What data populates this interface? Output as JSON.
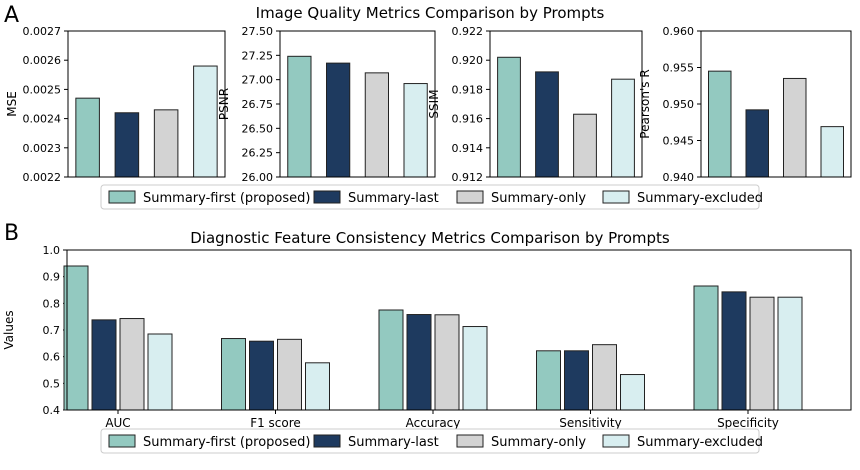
{
  "panel_a_label": "A",
  "panel_b_label": "B",
  "panel_a_title": "Image Quality Metrics Comparison by Prompts",
  "panel_b_title": "Diagnostic Feature Consistency Metrics Comparison by Prompts",
  "colors": {
    "summary_first": "#93c9c0",
    "summary_last": "#1e3a5f",
    "summary_only": "#d3d3d3",
    "summary_excluded": "#d8eef0",
    "edge": "#222222"
  },
  "legend": [
    "Summary-first (proposed)",
    "Summary-last",
    "Summary-only",
    "Summary-excluded"
  ],
  "chart_data": [
    {
      "type": "bar",
      "ylabel": "MSE",
      "ylim": [
        0.0022,
        0.0027
      ],
      "ticks": [
        "0.0022",
        "0.0023",
        "0.0024",
        "0.0025",
        "0.0026",
        "0.0027"
      ],
      "series": [
        {
          "name": "Summary-first (proposed)",
          "values": [
            0.00247
          ]
        },
        {
          "name": "Summary-last",
          "values": [
            0.00242
          ]
        },
        {
          "name": "Summary-only",
          "values": [
            0.00243
          ]
        },
        {
          "name": "Summary-excluded",
          "values": [
            0.00258
          ]
        }
      ]
    },
    {
      "type": "bar",
      "ylabel": "PSNR",
      "ylim": [
        26.0,
        27.5
      ],
      "ticks": [
        "26.00",
        "26.25",
        "26.50",
        "26.75",
        "27.00",
        "27.25",
        "27.50"
      ],
      "series": [
        {
          "name": "Summary-first (proposed)",
          "values": [
            27.24
          ]
        },
        {
          "name": "Summary-last",
          "values": [
            27.17
          ]
        },
        {
          "name": "Summary-only",
          "values": [
            27.07
          ]
        },
        {
          "name": "Summary-excluded",
          "values": [
            26.96
          ]
        }
      ]
    },
    {
      "type": "bar",
      "ylabel": "SSIM",
      "ylim": [
        0.912,
        0.922
      ],
      "ticks": [
        "0.912",
        "0.914",
        "0.916",
        "0.918",
        "0.920",
        "0.922"
      ],
      "series": [
        {
          "name": "Summary-first (proposed)",
          "values": [
            0.9202
          ]
        },
        {
          "name": "Summary-last",
          "values": [
            0.9192
          ]
        },
        {
          "name": "Summary-only",
          "values": [
            0.9163
          ]
        },
        {
          "name": "Summary-excluded",
          "values": [
            0.9187
          ]
        }
      ]
    },
    {
      "type": "bar",
      "ylabel": "Pearson's R",
      "ylim": [
        0.94,
        0.96
      ],
      "ticks": [
        "0.940",
        "0.945",
        "0.950",
        "0.955",
        "0.960"
      ],
      "series": [
        {
          "name": "Summary-first (proposed)",
          "values": [
            0.9545
          ]
        },
        {
          "name": "Summary-last",
          "values": [
            0.9492
          ]
        },
        {
          "name": "Summary-only",
          "values": [
            0.9535
          ]
        },
        {
          "name": "Summary-excluded",
          "values": [
            0.9469
          ]
        }
      ]
    },
    {
      "type": "bar",
      "ylabel": "Values",
      "categories": [
        "AUC",
        "F1 score",
        "Accuracy",
        "Sensitivity",
        "Specificity"
      ],
      "ylim": [
        0.4,
        1.0
      ],
      "ticks": [
        "0.4",
        "0.5",
        "0.6",
        "0.7",
        "0.8",
        "0.9",
        "1.0"
      ],
      "series": [
        {
          "name": "Summary-first (proposed)",
          "values": [
            0.94,
            0.668,
            0.775,
            0.622,
            0.865
          ]
        },
        {
          "name": "Summary-last",
          "values": [
            0.738,
            0.658,
            0.758,
            0.622,
            0.843
          ]
        },
        {
          "name": "Summary-only",
          "values": [
            0.743,
            0.665,
            0.757,
            0.645,
            0.823
          ]
        },
        {
          "name": "Summary-excluded",
          "values": [
            0.685,
            0.577,
            0.713,
            0.533,
            0.823
          ]
        }
      ]
    }
  ]
}
